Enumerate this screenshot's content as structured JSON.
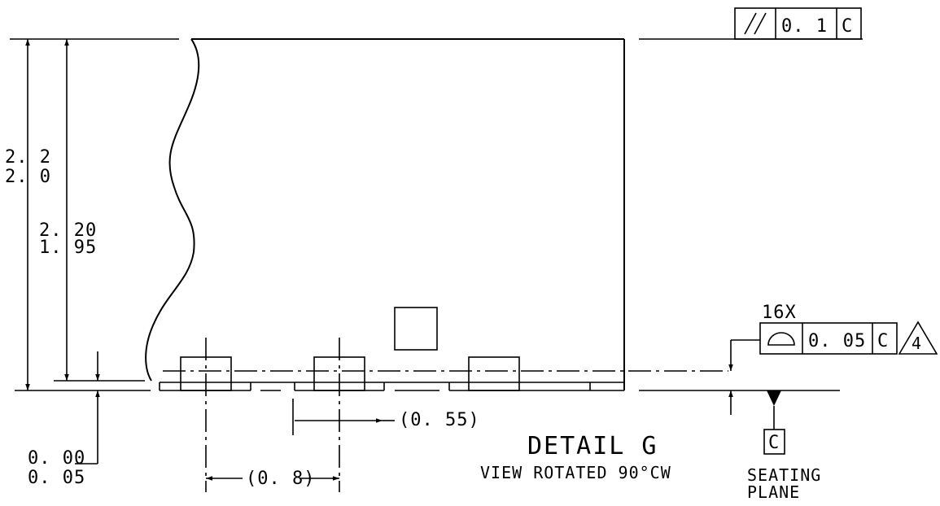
{
  "dimensions": {
    "overall_height_max": "2. 2",
    "overall_height_min": "2. 0",
    "body_height_max": "2. 20",
    "body_height_min": "1. 95",
    "standoff_max": "0. 00",
    "standoff_min": "0. 05",
    "lead_width_ref": "(0. 55)",
    "pitch_ref": "(0. 8)"
  },
  "parallelism_frame": {
    "symbol": "//",
    "tolerance": "0. 1",
    "datum": "C"
  },
  "profile_frame": {
    "count": "16X",
    "tolerance": "0. 05",
    "datum": "C",
    "note_flag": "4"
  },
  "detail": {
    "title": "DETAIL G",
    "subtitle": "VIEW ROTATED 90°CW"
  },
  "seating_plane": {
    "datum": "C",
    "label_line1": "SEATING",
    "label_line2": "PLANE"
  },
  "icons": [
    "parallelism-symbol",
    "surface-profile-symbol",
    "triangle-note-flag",
    "datum-target-triangle"
  ]
}
